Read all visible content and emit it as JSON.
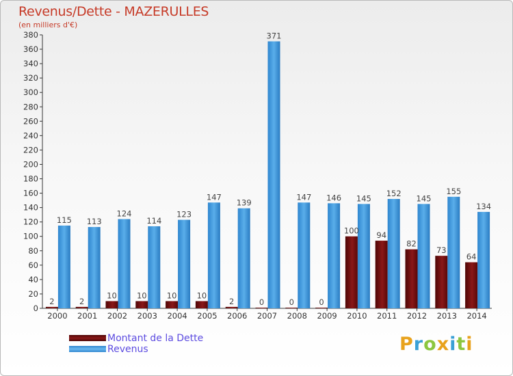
{
  "chart_data": {
    "type": "bar",
    "title": "Revenus/Dette - MAZERULLES",
    "subtitle": "(en milliers d'€)",
    "categories": [
      "2000",
      "2001",
      "2002",
      "2003",
      "2004",
      "2005",
      "2006",
      "2007",
      "2008",
      "2009",
      "2010",
      "2011",
      "2012",
      "2013",
      "2014"
    ],
    "series": [
      {
        "name": "Montant de la Dette",
        "color": "#7a1010",
        "values": [
          2,
          2,
          10,
          10,
          10,
          10,
          2,
          0,
          0,
          0,
          100,
          94,
          82,
          73,
          64
        ]
      },
      {
        "name": "Revenus",
        "color": "#3b95dd",
        "values": [
          115,
          113,
          124,
          114,
          123,
          147,
          139,
          371,
          147,
          146,
          145,
          152,
          145,
          155,
          134
        ]
      }
    ],
    "ylim": [
      0,
      380
    ],
    "y_ticks": [
      0,
      20,
      40,
      60,
      80,
      100,
      120,
      140,
      160,
      180,
      200,
      220,
      240,
      260,
      280,
      300,
      320,
      340,
      360,
      380
    ],
    "grid": false,
    "legend_position": "bottom-left"
  },
  "legend": {
    "items": [
      {
        "label": "Montant de la Dette",
        "color": "#7a1010"
      },
      {
        "label": "Revenus",
        "color": "#3b95dd"
      }
    ]
  },
  "logo": {
    "letters": [
      {
        "ch": "P",
        "color": "#e8a21c"
      },
      {
        "ch": "r",
        "color": "#3aa0d6"
      },
      {
        "ch": "o",
        "color": "#8cc63f"
      },
      {
        "ch": "x",
        "color": "#e8a21c"
      },
      {
        "ch": "i",
        "color": "#3aa0d6"
      },
      {
        "ch": "t",
        "color": "#8cc63f"
      },
      {
        "ch": "i",
        "color": "#e8a21c"
      }
    ]
  }
}
